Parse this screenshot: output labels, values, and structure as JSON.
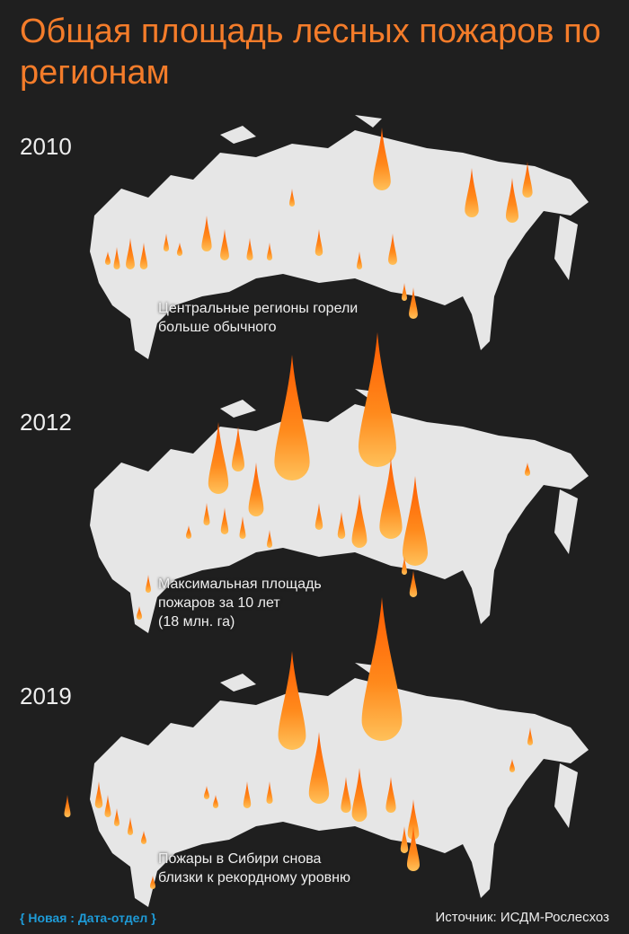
{
  "header": {
    "title": "Общая площадь лесных пожаров по регионам"
  },
  "panels": [
    {
      "year": "2010",
      "caption": [
        "Центральные регионы горели",
        "больше обычного"
      ]
    },
    {
      "year": "2012",
      "caption": [
        "Максимальная площадь",
        "пожаров за 10 лет",
        "(18 млн. га)"
      ]
    },
    {
      "year": "2019",
      "caption": [
        "Пожары в Сибири снова",
        "близки к рекордному уровню"
      ]
    }
  ],
  "footer": {
    "brand": "{ Новая : Дата-отдел }",
    "source": "Источник: ИСДМ-Рослесхоз"
  }
}
